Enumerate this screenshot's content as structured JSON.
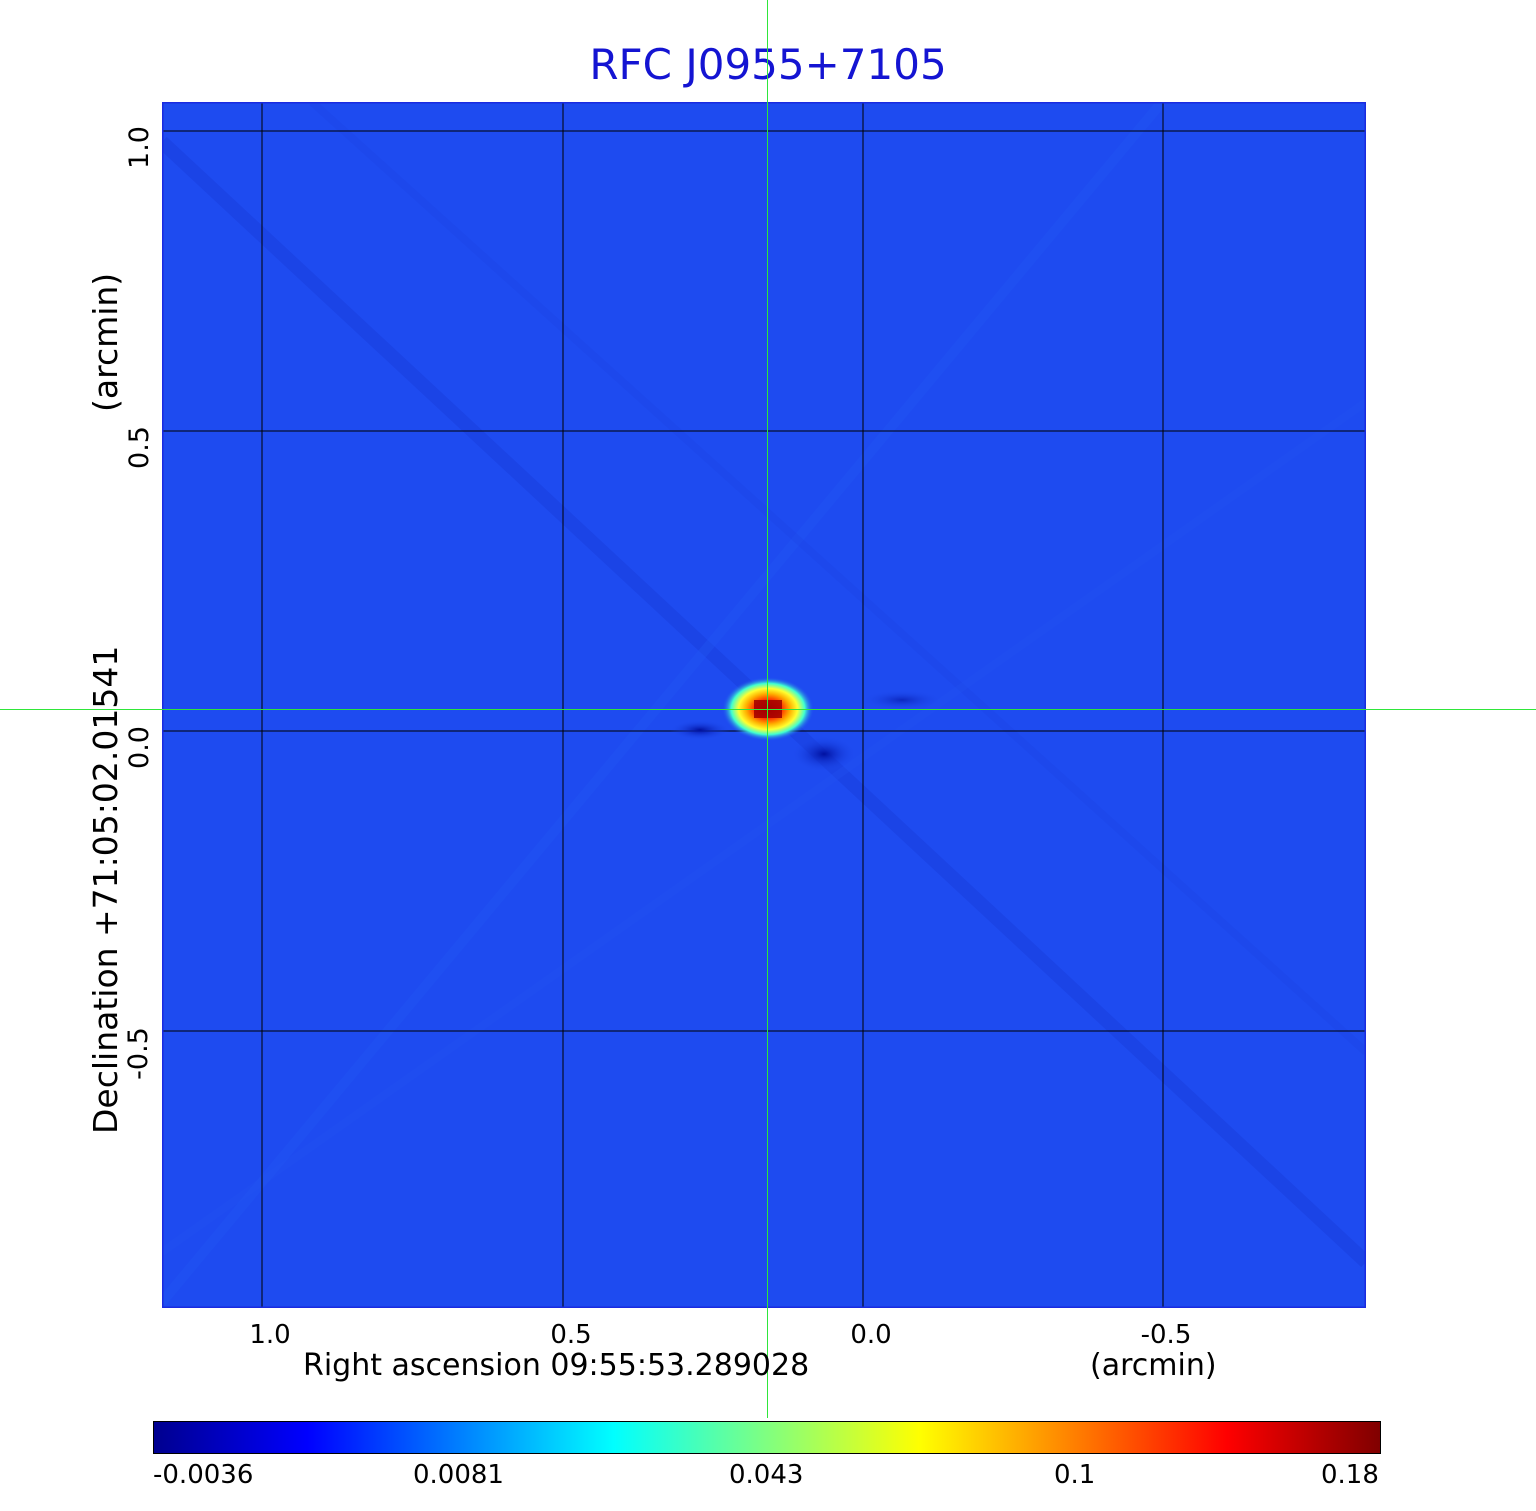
{
  "title": "RFC J0955+7105",
  "axes": {
    "ylabel_name": "Declination  +71:05:02.01541",
    "ylabel_unit": "(arcmin)",
    "xlabel_name": "Right ascension  09:55:53.289028",
    "xlabel_unit": "(arcmin)",
    "xticks": [
      "1.0",
      "0.5",
      "0.0",
      "-0.5"
    ],
    "yticks": [
      "1.0",
      "0.5",
      "0.0",
      "-0.5"
    ]
  },
  "colorbar": {
    "ticks": [
      "-0.0036",
      "0.0081",
      "0.043",
      "0.1",
      "0.18"
    ],
    "colors": [
      "#00008f",
      "#0000ff",
      "#0080ff",
      "#00ffff",
      "#80ff80",
      "#ffff00",
      "#ff8000",
      "#ff0000",
      "#800000"
    ]
  },
  "colors": {
    "background": "#1e4bf0",
    "title": "#1414d2",
    "crosshair": "#2fe63a"
  },
  "chart_data": {
    "type": "heatmap",
    "title": "RFC J0955+7105",
    "xlabel": "Right ascension  09:55:53.289028 (arcmin)",
    "ylabel": "Declination  +71:05:02.01541 (arcmin)",
    "xlim": [
      1.17,
      -0.84
    ],
    "ylim": [
      -0.97,
      1.04
    ],
    "xticks": [
      1.0,
      0.5,
      0.0,
      -0.5
    ],
    "yticks": [
      1.0,
      0.5,
      0.0,
      -0.5
    ],
    "grid": true,
    "source_peak": {
      "x": 0.16,
      "y": 0.035,
      "value": 0.18
    },
    "color_range": [
      -0.0036,
      0.18
    ]
  }
}
